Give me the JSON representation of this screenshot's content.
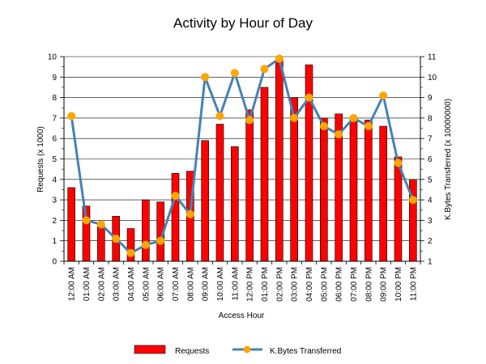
{
  "chart_data": {
    "type": "bar",
    "title": "Activity by Hour of Day",
    "xlabel": "Access Hour",
    "ylabel": "Requests (x 1000)",
    "y2label": "K.Bytes Transferred (x 10000000)",
    "ylim": [
      0,
      10
    ],
    "y2lim": [
      1,
      11
    ],
    "yticks": [
      "0",
      "1",
      "2",
      "3",
      "4",
      "5",
      "6",
      "7",
      "8",
      "9",
      "10"
    ],
    "y2ticks": [
      "1",
      "2",
      "3",
      "4",
      "5",
      "6",
      "7",
      "8",
      "9",
      "10",
      "11"
    ],
    "grid": true,
    "legend_position": "bottom",
    "categories": [
      "12:00 AM",
      "01:00 AM",
      "02:00 AM",
      "03:00 AM",
      "04:00 AM",
      "05:00 AM",
      "06:00 AM",
      "07:00 AM",
      "08:00 AM",
      "09:00 AM",
      "10:00 AM",
      "11:00 AM",
      "12:00 PM",
      "01:00 PM",
      "02:00 PM",
      "03:00 PM",
      "04:00 PM",
      "05:00 PM",
      "06:00 PM",
      "07:00 PM",
      "08:00 PM",
      "09:00 PM",
      "10:00 PM",
      "11:00 PM"
    ],
    "series": [
      {
        "name": "Requests",
        "type": "bar",
        "axis": "left",
        "color": "#ff0000",
        "values": [
          3.6,
          2.7,
          1.7,
          2.2,
          1.6,
          3.0,
          2.9,
          4.3,
          4.4,
          5.9,
          6.7,
          5.6,
          7.4,
          8.5,
          9.8,
          8.0,
          9.6,
          7.0,
          7.2,
          7.0,
          6.9,
          6.6,
          5.1,
          4.0
        ]
      },
      {
        "name": "K.Bytes Transferred",
        "type": "line",
        "axis": "right",
        "color": "#4682b4",
        "marker_color": "#ffa500",
        "values": [
          8.1,
          3.0,
          2.8,
          2.1,
          1.4,
          1.8,
          2.0,
          4.2,
          3.3,
          10.0,
          8.1,
          10.2,
          7.9,
          10.4,
          10.9,
          8.0,
          9.0,
          7.6,
          7.2,
          8.0,
          7.6,
          9.1,
          5.8,
          4.0
        ]
      }
    ]
  }
}
